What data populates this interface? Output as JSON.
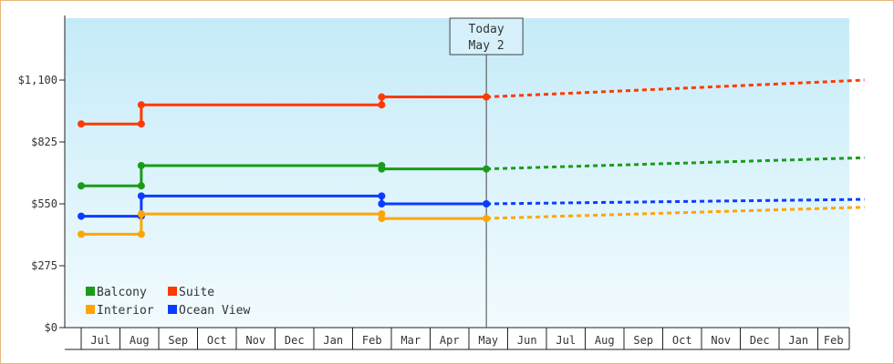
{
  "chart_data": {
    "type": "line",
    "today_label": [
      "Today",
      "May 2"
    ],
    "y_ticks": [
      "$0",
      "$275",
      "$550",
      "$825",
      "$1,100"
    ],
    "ylim": [
      0,
      1375
    ],
    "month_ticks": [
      "Jul",
      "Aug",
      "Sep",
      "Oct",
      "Nov",
      "Dec",
      "Jan",
      "Feb",
      "Mar",
      "Apr",
      "May",
      "Jun",
      "Jul",
      "Aug",
      "Sep",
      "Oct",
      "Nov",
      "Dec",
      "Jan",
      "Feb"
    ],
    "today_x": 10.45,
    "series": [
      {
        "name": "Suite",
        "color": "#ff3a00",
        "points": [
          [
            0,
            905
          ],
          [
            1.55,
            905
          ],
          [
            1.55,
            990
          ],
          [
            7.75,
            990
          ],
          [
            7.75,
            1025
          ],
          [
            10.45,
            1025
          ]
        ],
        "forecast": [
          [
            10.45,
            1025
          ],
          [
            20.2,
            1100
          ]
        ]
      },
      {
        "name": "Balcony",
        "color": "#1a9c1a",
        "points": [
          [
            0,
            630
          ],
          [
            1.55,
            630
          ],
          [
            1.55,
            720
          ],
          [
            7.75,
            720
          ],
          [
            7.75,
            705
          ],
          [
            10.45,
            705
          ]
        ],
        "forecast": [
          [
            10.45,
            705
          ],
          [
            20.2,
            755
          ]
        ]
      },
      {
        "name": "Ocean View",
        "color": "#0a3cff",
        "points": [
          [
            0,
            495
          ],
          [
            1.55,
            495
          ],
          [
            1.55,
            585
          ],
          [
            7.75,
            585
          ],
          [
            7.75,
            550
          ],
          [
            10.45,
            550
          ]
        ],
        "forecast": [
          [
            10.45,
            550
          ],
          [
            20.2,
            570
          ]
        ]
      },
      {
        "name": "Interior",
        "color": "#ffa500",
        "points": [
          [
            0,
            415
          ],
          [
            1.55,
            415
          ],
          [
            1.55,
            505
          ],
          [
            7.75,
            505
          ],
          [
            7.75,
            485
          ],
          [
            10.45,
            485
          ]
        ],
        "forecast": [
          [
            10.45,
            485
          ],
          [
            20.2,
            535
          ]
        ]
      }
    ],
    "legend": [
      {
        "name": "Balcony",
        "color": "#1a9c1a"
      },
      {
        "name": "Suite",
        "color": "#ff3a00"
      },
      {
        "name": "Interior",
        "color": "#ffa500"
      },
      {
        "name": "Ocean View",
        "color": "#0a3cff"
      }
    ]
  }
}
